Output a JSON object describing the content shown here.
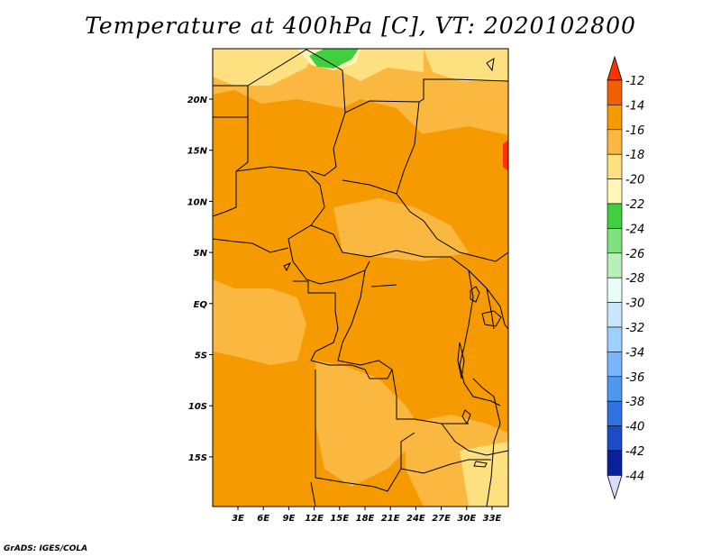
{
  "title": "Temperature at 400hPa [C], VT: 2020102800",
  "footer": "GrADS: IGES/COLA",
  "map": {
    "lat_labels": [
      "20N",
      "15N",
      "10N",
      "5N",
      "EQ",
      "5S",
      "10S",
      "15S"
    ],
    "lon_labels": [
      "3E",
      "6E",
      "9E",
      "12E",
      "15E",
      "18E",
      "21E",
      "24E",
      "27E",
      "30E",
      "33E"
    ]
  },
  "colorbar": {
    "levels": [
      "-12",
      "-14",
      "-16",
      "-18",
      "-20",
      "-22",
      "-24",
      "-26",
      "-28",
      "-30",
      "-32",
      "-34",
      "-36",
      "-38",
      "-40",
      "-42",
      "-44"
    ],
    "colors": [
      "#ff3300",
      "#f06000",
      "#f59a00",
      "#fbb840",
      "#fde080",
      "#fff6b8",
      "#3fcf3f",
      "#7ee27e",
      "#b8f0b8",
      "#e8fff8",
      "#c8e6ff",
      "#9fd0ff",
      "#78b6ff",
      "#4f98f0",
      "#2f72e0",
      "#1b4bc8",
      "#0a1f9a",
      "#0a0a6e"
    ],
    "arrow_top_color": "#ff3300",
    "arrow_bottom_color": "#dcdcf8"
  }
}
